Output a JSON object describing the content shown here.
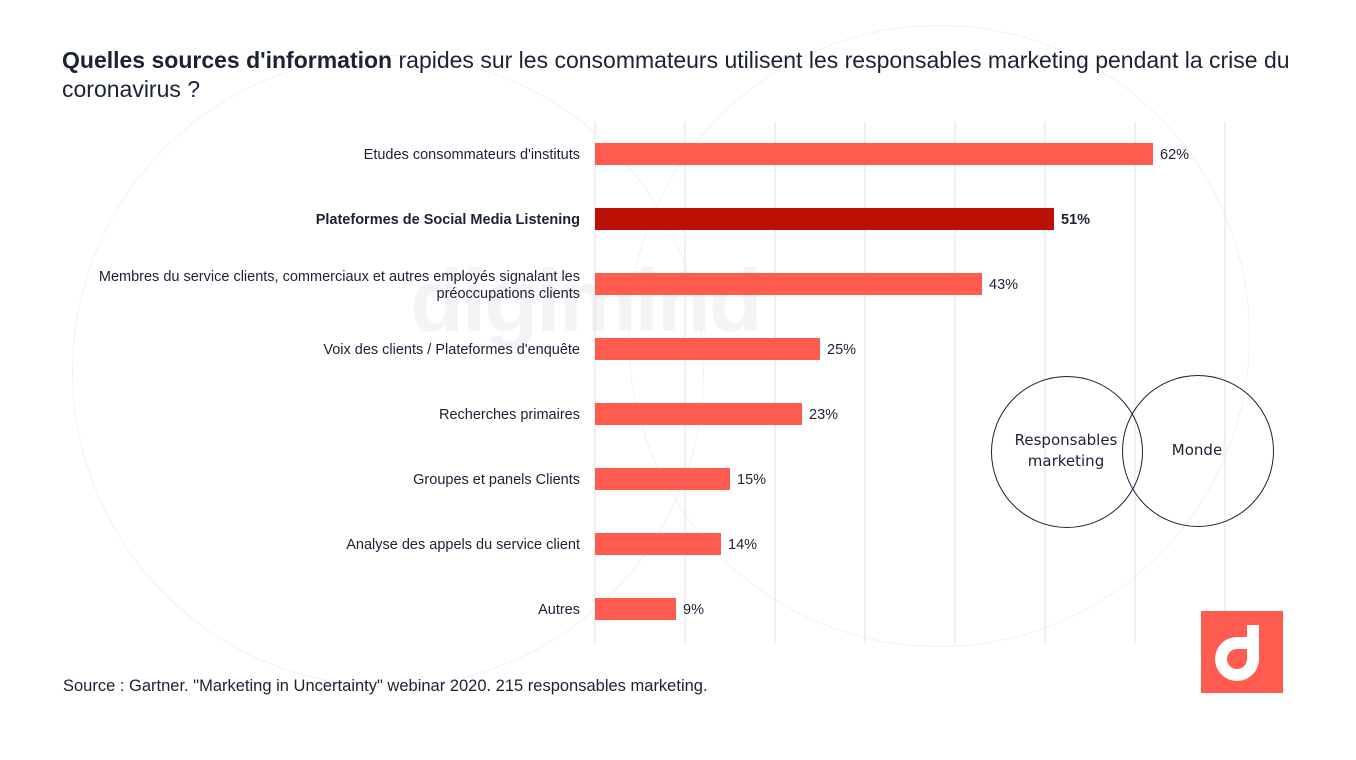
{
  "title": {
    "bold": "Quelles sources  d'information",
    "rest": " rapides sur les consommateurs utilisent les responsables marketing pendant la crise du coronavirus ?"
  },
  "watermark": "digimind",
  "venn": {
    "left_label": "Responsables marketing",
    "right_label": "Monde"
  },
  "source": "Source : Gartner. \"Marketing in Uncertainty\" webinar 2020.  215 responsables marketing.",
  "logo_icon": "digimind-logo-icon",
  "colors": {
    "bar": "#ff5b4e",
    "highlight": "#bc0f06",
    "text": "#1b2233",
    "grid": "#dde0ea"
  },
  "chart_data": {
    "type": "bar",
    "orientation": "horizontal",
    "title": "",
    "xlabel": "",
    "ylabel": "",
    "xlim": [
      0,
      70
    ],
    "grid": true,
    "categories": [
      "Etudes consommateurs d'instituts",
      "Plateformes de Social Media Listening",
      "Membres du service clients, commerciaux et autres employés signalant les préoccupations clients",
      "Voix des clients / Plateformes d'enquête",
      "Recherches primaires",
      "Groupes et panels Clients",
      "Analyse des appels du service client",
      "Autres"
    ],
    "values": [
      62,
      51,
      43,
      25,
      23,
      15,
      14,
      9
    ],
    "value_labels": [
      "62%",
      "51%",
      "43%",
      "25%",
      "23%",
      "15%",
      "14%",
      "9%"
    ],
    "highlighted_index": 1
  }
}
